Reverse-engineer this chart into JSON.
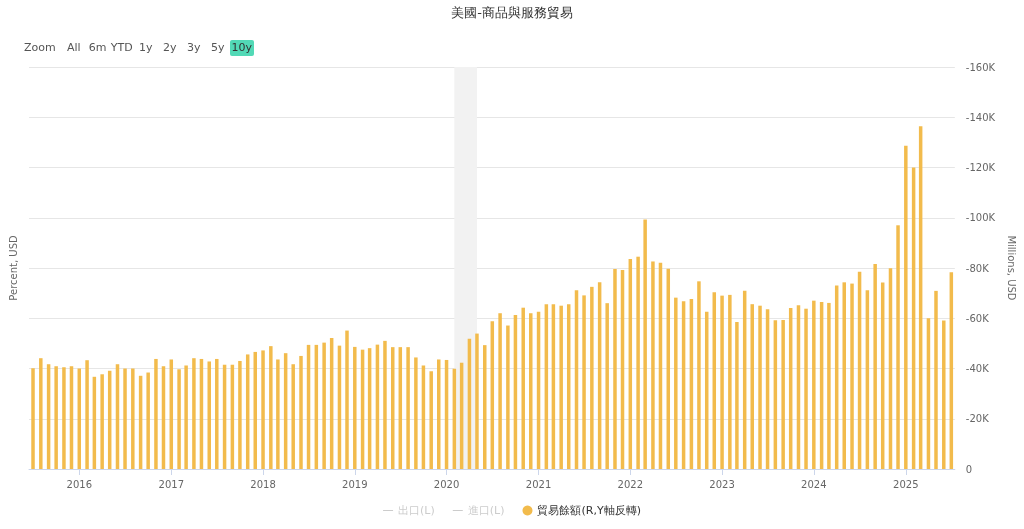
{
  "chart_data": {
    "type": "bar",
    "title": "美國-商品與服務貿易",
    "ylabel": "Percent, USD",
    "y2label": "Millions, USD",
    "annotations": [
      "Zoom",
      "All",
      "6m",
      "YTD",
      "1y",
      "2y",
      "3y",
      "5y",
      "10y"
    ],
    "x": [
      "2015-07",
      "2015-08",
      "2015-09",
      "2015-10",
      "2015-11",
      "2015-12",
      "2016-01",
      "2016-02",
      "2016-03",
      "2016-04",
      "2016-05",
      "2016-06",
      "2016-07",
      "2016-08",
      "2016-09",
      "2016-10",
      "2016-11",
      "2016-12",
      "2017-01",
      "2017-02",
      "2017-03",
      "2017-04",
      "2017-05",
      "2017-06",
      "2017-07",
      "2017-08",
      "2017-09",
      "2017-10",
      "2017-11",
      "2017-12",
      "2018-01",
      "2018-02",
      "2018-03",
      "2018-04",
      "2018-05",
      "2018-06",
      "2018-07",
      "2018-08",
      "2018-09",
      "2018-10",
      "2018-11",
      "2018-12",
      "2019-01",
      "2019-02",
      "2019-03",
      "2019-04",
      "2019-05",
      "2019-06",
      "2019-07",
      "2019-08",
      "2019-09",
      "2019-10",
      "2019-11",
      "2019-12",
      "2020-01",
      "2020-02",
      "2020-03",
      "2020-04",
      "2020-05",
      "2020-06",
      "2020-07",
      "2020-08",
      "2020-09",
      "2020-10",
      "2020-11",
      "2020-12",
      "2021-01",
      "2021-02",
      "2021-03",
      "2021-04",
      "2021-05",
      "2021-06",
      "2021-07",
      "2021-08",
      "2021-09",
      "2021-10",
      "2021-11",
      "2021-12",
      "2022-01",
      "2022-02",
      "2022-03",
      "2022-04",
      "2022-05",
      "2022-06",
      "2022-07",
      "2022-08",
      "2022-09",
      "2022-10",
      "2022-11",
      "2022-12",
      "2023-01",
      "2023-02",
      "2023-03",
      "2023-04",
      "2023-05",
      "2023-06",
      "2023-07",
      "2023-08",
      "2023-09",
      "2023-10",
      "2023-11",
      "2023-12",
      "2024-01",
      "2024-02",
      "2024-03",
      "2024-04",
      "2024-05",
      "2024-06",
      "2024-07",
      "2024-08",
      "2024-09",
      "2024-10",
      "2024-11",
      "2024-12",
      "2025-01",
      "2025-02",
      "2025-03",
      "2025-04",
      "2025-05",
      "2025-06",
      "2025-07"
    ],
    "series": [
      {
        "name": "出口(L)",
        "type": "line",
        "color": "#cccccc",
        "values": [
          null,
          null,
          null,
          null,
          null,
          null,
          null,
          null,
          null,
          null,
          null,
          null,
          null,
          null,
          null,
          null,
          null,
          null,
          null,
          null,
          null,
          null,
          null,
          null,
          null,
          null,
          null,
          null,
          null,
          null,
          null,
          null,
          null,
          null,
          null,
          null,
          null,
          null,
          null,
          null,
          null,
          null,
          null,
          null,
          null,
          null,
          null,
          null,
          null,
          null,
          null,
          null,
          null,
          null,
          null,
          null,
          null,
          null,
          null,
          null,
          null,
          null,
          null,
          null,
          null,
          null,
          null,
          null,
          null,
          null,
          null,
          null,
          null,
          null,
          null,
          null,
          null,
          null,
          null,
          null,
          null,
          null,
          null,
          null,
          null,
          null,
          null,
          null,
          null,
          null,
          null,
          null,
          null,
          null,
          null,
          null,
          null,
          null,
          null,
          null,
          null,
          null,
          null,
          null,
          null,
          null,
          null,
          null,
          null,
          null,
          null,
          null,
          null,
          null,
          null,
          null,
          null,
          null,
          null,
          null,
          null
        ]
      },
      {
        "name": "進口(L)",
        "type": "line",
        "color": "#cccccc",
        "values": [
          null,
          null,
          null,
          null,
          null,
          null,
          null,
          null,
          null,
          null,
          null,
          null,
          null,
          null,
          null,
          null,
          null,
          null,
          null,
          null,
          null,
          null,
          null,
          null,
          null,
          null,
          null,
          null,
          null,
          null,
          null,
          null,
          null,
          null,
          null,
          null,
          null,
          null,
          null,
          null,
          null,
          null,
          null,
          null,
          null,
          null,
          null,
          null,
          null,
          null,
          null,
          null,
          null,
          null,
          null,
          null,
          null,
          null,
          null,
          null,
          null,
          null,
          null,
          null,
          null,
          null,
          null,
          null,
          null,
          null,
          null,
          null,
          null,
          null,
          null,
          null,
          null,
          null,
          null,
          null,
          null,
          null,
          null,
          null,
          null,
          null,
          null,
          null,
          null,
          null,
          null,
          null,
          null,
          null,
          null,
          null,
          null,
          null,
          null,
          null,
          null,
          null,
          null,
          null,
          null,
          null,
          null,
          null,
          null,
          null,
          null,
          null,
          null,
          null,
          null,
          null,
          null,
          null,
          null,
          null,
          null
        ]
      },
      {
        "name": "貿易餘額(R,Y軸反轉)",
        "axis": "y2",
        "color": "#f2bb4c",
        "values": [
          -40100,
          -44100,
          -41700,
          -40900,
          -40500,
          -40900,
          -40000,
          -43300,
          -36700,
          -37700,
          -39100,
          -41700,
          -40000,
          -40000,
          -37100,
          -38400,
          -43800,
          -40900,
          -43600,
          -39700,
          -41200,
          -44100,
          -43800,
          -42800,
          -43800,
          -41500,
          -41500,
          -43000,
          -45600,
          -46600,
          -47200,
          -48900,
          -43600,
          -46100,
          -41700,
          -45000,
          -49400,
          -49400,
          -50300,
          -52100,
          -49100,
          -55100,
          -48600,
          -47500,
          -48100,
          -49500,
          -51000,
          -48500,
          -48500,
          -48500,
          -44400,
          -41200,
          -38900,
          -43600,
          -43400,
          -39900,
          -42300,
          -51800,
          -53900,
          -49300,
          -58800,
          -62000,
          -57100,
          -61300,
          -64200,
          -62000,
          -62600,
          -65600,
          -65600,
          -65000,
          -65600,
          -71100,
          -69100,
          -72500,
          -74300,
          -66000,
          -79600,
          -79200,
          -83600,
          -84500,
          -99300,
          -82600,
          -82100,
          -79700,
          -68200,
          -66800,
          -67700,
          -74700,
          -62600,
          -70300,
          -69000,
          -69300,
          -58500,
          -70900,
          -65600,
          -65000,
          -63600,
          -59200,
          -59300,
          -64100,
          -65200,
          -63800,
          -67000,
          -66500,
          -66100,
          -73000,
          -74300,
          -73800,
          -78500,
          -71100,
          -81600,
          -74200,
          -79900,
          -97000,
          -128700,
          -120000,
          -136400,
          -60000,
          -70900,
          -59100,
          -78300
        ]
      }
    ],
    "xlim": [
      "2015-06-15",
      "2025-07-15"
    ],
    "xticks": [
      "2016",
      "2017",
      "2018",
      "2019",
      "2020",
      "2021",
      "2022",
      "2023",
      "2024",
      "2025"
    ],
    "y2lim": [
      0,
      -160000
    ],
    "y2ticks": [
      0,
      {
        "value": -20000,
        "label": "-20K"
      },
      {
        "value": -40000,
        "label": "-40K"
      },
      {
        "value": -60000,
        "label": "-60K"
      },
      {
        "value": -80000,
        "label": "-80K"
      },
      {
        "value": -100000,
        "label": "-100K"
      },
      {
        "value": -120000,
        "label": "-120K"
      },
      {
        "value": -140000,
        "label": "-140K"
      },
      {
        "value": -160000,
        "label": "-160K"
      }
    ],
    "bands": [
      {
        "axis": "x",
        "from": "2020-02",
        "to": "2020-05",
        "color": "#f2f2f2"
      }
    ],
    "grid": "y",
    "legend": "bottom"
  }
}
